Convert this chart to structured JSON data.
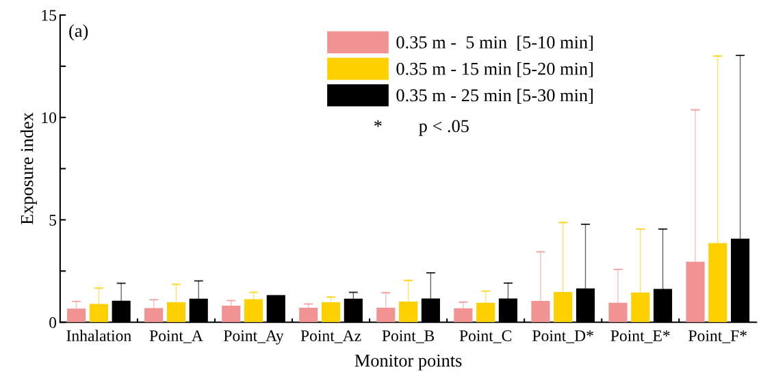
{
  "chart_data": {
    "type": "bar",
    "xlabel": "Monitor points",
    "ylabel": "Exposure index",
    "categories": [
      "Inhalation",
      "Point_A",
      "Point_Ay",
      "Point_Az",
      "Point_B",
      "Point_C",
      "Point_D*",
      "Point_E*",
      "Point_F*"
    ],
    "series": [
      {
        "name": "0.35 m -  5 min  [5-10 min]",
        "color": "#f29393",
        "values": [
          0.67,
          0.69,
          0.81,
          0.71,
          0.71,
          0.68,
          1.04,
          0.95,
          2.95
        ],
        "errors": [
          [
            0.67,
            1.02
          ],
          [
            0.69,
            1.1
          ],
          [
            0.81,
            1.06
          ],
          [
            0.71,
            0.89
          ],
          [
            0.71,
            1.44
          ],
          [
            0.68,
            0.98
          ],
          [
            1.04,
            3.44
          ],
          [
            0.95,
            2.58
          ],
          [
            2.95,
            10.37
          ]
        ]
      },
      {
        "name": "0.35 m - 15 min [5-20 min]",
        "color": "#ffd000",
        "values": [
          0.89,
          0.98,
          1.13,
          0.98,
          1.01,
          0.95,
          1.48,
          1.45,
          3.86
        ],
        "errors": [
          [
            0.89,
            1.67
          ],
          [
            0.98,
            1.85
          ],
          [
            1.13,
            1.46
          ],
          [
            0.98,
            1.23
          ],
          [
            1.01,
            2.04
          ],
          [
            0.95,
            1.52
          ],
          [
            1.48,
            4.87
          ],
          [
            1.45,
            4.55
          ],
          [
            3.86,
            13.0
          ]
        ]
      },
      {
        "name": "0.35 m - 25 min [5-30 min]",
        "color": "#000000",
        "values": [
          1.05,
          1.15,
          1.33,
          1.15,
          1.16,
          1.16,
          1.65,
          1.63,
          4.08
        ],
        "errors": [
          [
            1.05,
            1.9
          ],
          [
            1.15,
            2.02
          ],
          null,
          [
            1.15,
            1.46
          ],
          [
            1.16,
            2.41
          ],
          [
            1.16,
            1.91
          ],
          [
            1.65,
            4.78
          ],
          [
            1.63,
            4.55
          ],
          [
            4.08,
            13.03
          ]
        ]
      }
    ],
    "ylim": [
      0,
      15
    ],
    "yticks": [
      0,
      {
        "value": 2.5,
        "label": null
      },
      5,
      {
        "value": 7.5,
        "label": null
      },
      10,
      {
        "value": 12.5,
        "label": null
      },
      15
    ],
    "grid": false,
    "legend": "top right",
    "annotations": [
      "(a)",
      "*        p < .05"
    ]
  }
}
